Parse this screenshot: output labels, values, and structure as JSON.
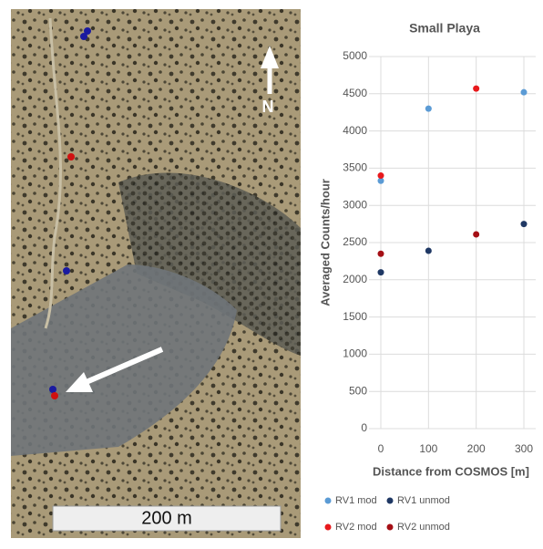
{
  "map": {
    "scale_label": "200 m",
    "north_label": "N"
  },
  "chart_data": {
    "type": "scatter",
    "title": "Small Playa",
    "x_label": "Distance from COSMOS [m]",
    "y_label": "Averaged Counts/hour",
    "xlim": [
      0,
      300
    ],
    "xticks": [
      0,
      100,
      200,
      300
    ],
    "ylim": [
      0,
      5000
    ],
    "yticks": [
      0,
      500,
      1000,
      1500,
      2000,
      2500,
      3000,
      3500,
      4000,
      4500,
      5000
    ],
    "grid": true,
    "legend": "bottom",
    "series": [
      {
        "name": "RV1 mod",
        "color": "#5b9bd5",
        "x": [
          0,
          100,
          300
        ],
        "values": [
          3330,
          4300,
          4520
        ]
      },
      {
        "name": "RV1 unmod",
        "color": "#1f3864",
        "x": [
          0,
          100,
          300
        ],
        "values": [
          2100,
          2390,
          2750
        ]
      },
      {
        "name": "RV2 mod",
        "color": "#e8191c",
        "x": [
          0,
          200
        ],
        "values": [
          3400,
          4570
        ]
      },
      {
        "name": "RV2 unmod",
        "color": "#a50f15",
        "x": [
          0,
          200
        ],
        "values": [
          2350,
          2610
        ]
      }
    ]
  }
}
